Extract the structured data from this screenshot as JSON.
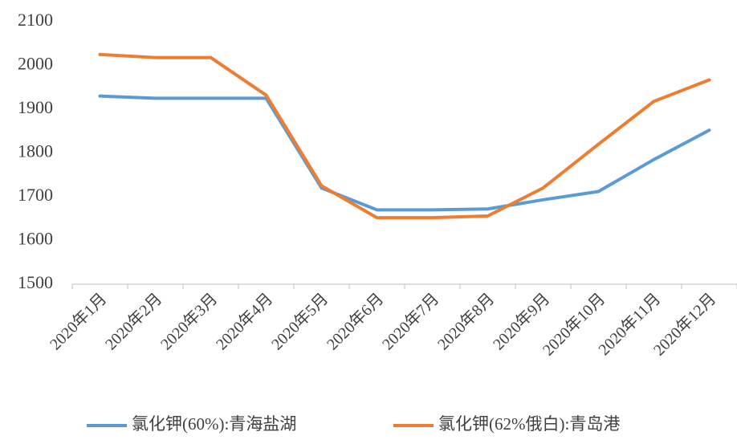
{
  "chart_data": {
    "type": "line",
    "categories": [
      "2020年1月",
      "2020年2月",
      "2020年3月",
      "2020年4月",
      "2020年5月",
      "2020年6月",
      "2020年7月",
      "2020年8月",
      "2020年9月",
      "2020年10月",
      "2020年11月",
      "2020年12月"
    ],
    "series": [
      {
        "name": "氯化钾(60%):青海盐湖",
        "color": "#5b9bd5",
        "values": [
          1930,
          1925,
          1925,
          1925,
          1720,
          1670,
          1670,
          1672,
          1693,
          1712,
          1785,
          1852
        ]
      },
      {
        "name": "氯化钾(62%俄白):青岛港",
        "color": "#ed7d31",
        "values": [
          2025,
          2018,
          2018,
          1932,
          1725,
          1652,
          1652,
          1656,
          1720,
          1820,
          1918,
          1967
        ]
      }
    ],
    "ylim": [
      1500,
      2100
    ],
    "yticks": [
      1500,
      1600,
      1700,
      1800,
      1900,
      2000,
      2100
    ],
    "grid": false,
    "legend": "bottom"
  }
}
